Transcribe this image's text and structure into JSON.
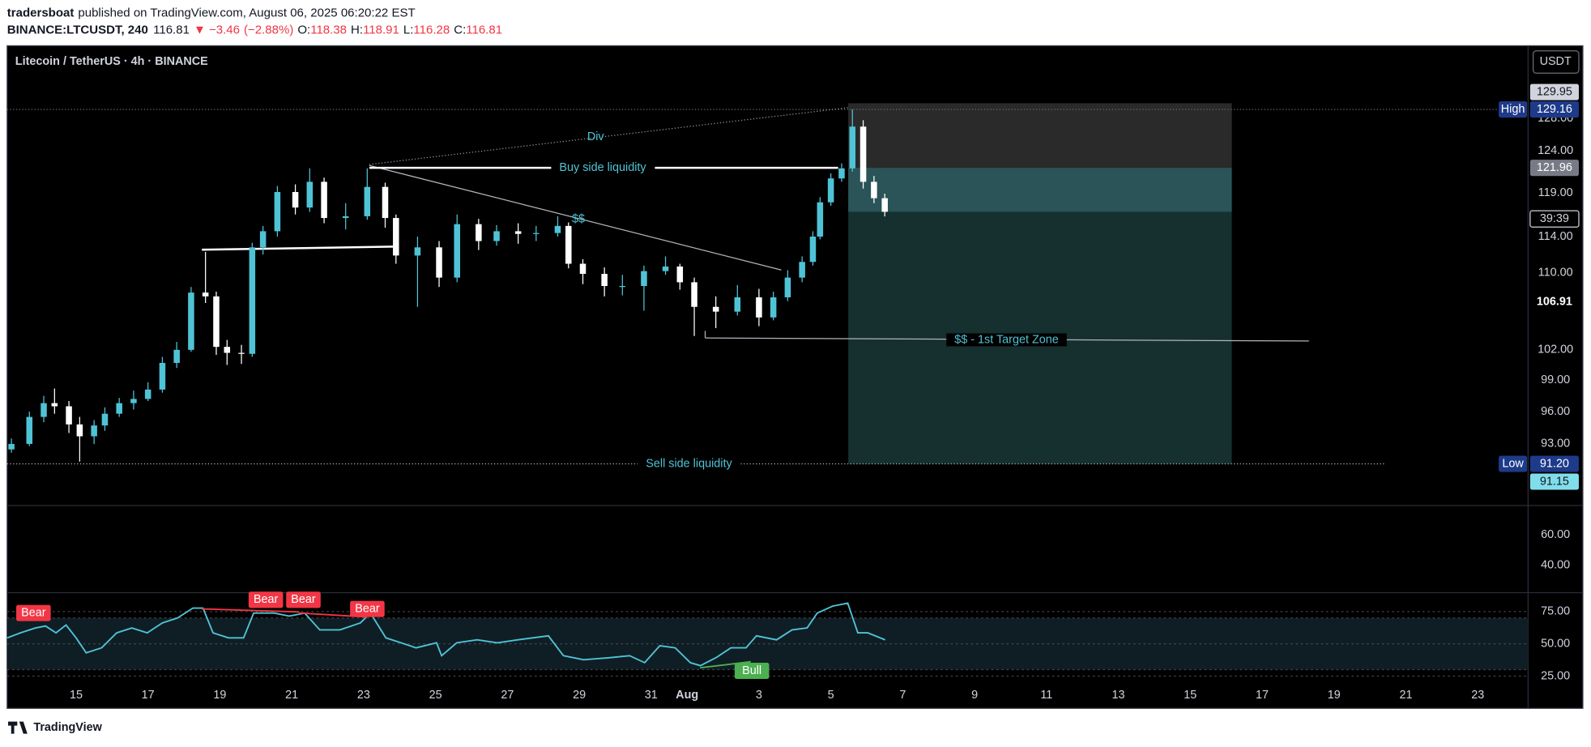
{
  "header": {
    "author": "tradersboat",
    "published": "published on TradingView.com, August 06, 2025 06:20:22 EST",
    "symbol": "BINANCE:LTCUSDT, 240",
    "change": {
      "value": -3.46,
      "label": "▼ −3.46"
    },
    "change_pct": {
      "value": -2.88,
      "label": "(−2.88%)"
    },
    "ohlc_labels": [
      "O:",
      "H:",
      "L:",
      "C:"
    ]
  },
  "brand": "TradingView",
  "chart_data": [
    {
      "type": "candlestick",
      "title": "Litecoin / TetherUS · 4h · BINANCE",
      "currency": "USDT",
      "up_color": "#4fc3d6",
      "down_color": "#ffffff",
      "log_scale": true,
      "x": [
        13.2,
        13.7,
        14.1,
        14.4,
        14.8,
        15.1,
        15.5,
        15.8,
        16.2,
        16.6,
        17.0,
        17.4,
        17.8,
        18.2,
        18.6,
        18.9,
        19.2,
        19.6,
        19.9,
        20.2,
        20.6,
        21.1,
        21.5,
        21.9,
        22.5,
        23.1,
        23.6,
        23.9,
        24.5,
        25.1,
        25.6,
        26.2,
        26.7,
        27.3,
        27.8,
        28.4,
        28.7,
        29.1,
        29.7,
        30.2,
        30.8,
        31.4,
        31.8,
        32.2,
        32.8,
        33.4,
        34.0,
        34.4,
        34.8,
        35.2,
        35.5,
        35.7,
        36.0,
        36.3,
        36.6,
        36.9,
        37.2,
        37.5
      ],
      "open": [
        92.5,
        93.0,
        95.5,
        96.8,
        96.5,
        94.8,
        93.7,
        94.7,
        95.8,
        96.8,
        97.2,
        98.1,
        100.7,
        102.0,
        107.9,
        107.5,
        102.3,
        101.7,
        101.6,
        112.8,
        114.6,
        119.1,
        117.3,
        120.3,
        116.1,
        116.3,
        119.7,
        116.1,
        111.9,
        112.8,
        109.5,
        115.4,
        113.5,
        114.6,
        114.3,
        114.4,
        115.2,
        111.0,
        109.9,
        108.6,
        108.6,
        110.2,
        110.7,
        109.0,
        106.4,
        105.9,
        107.4,
        105.3,
        107.4,
        109.5,
        111.2,
        114.0,
        117.9,
        120.7,
        121.9,
        127.0,
        120.3,
        118.38
      ],
      "high": [
        93.5,
        96.0,
        97.5,
        98.2,
        97.0,
        95.5,
        95.2,
        96.4,
        97.3,
        98.0,
        98.8,
        101.3,
        102.8,
        108.5,
        112.3,
        108.0,
        103.0,
        102.5,
        113.3,
        115.2,
        119.8,
        120.0,
        121.9,
        120.8,
        117.8,
        121.9,
        120.2,
        116.5,
        114.0,
        113.5,
        116.5,
        116.0,
        115.3,
        115.5,
        115.2,
        116.3,
        115.6,
        111.5,
        110.6,
        109.8,
        110.8,
        111.8,
        111.0,
        109.5,
        107.5,
        108.7,
        108.3,
        108.0,
        110.3,
        111.8,
        114.6,
        118.5,
        121.3,
        122.5,
        129.16,
        127.8,
        121.0,
        118.91
      ],
      "low": [
        92.2,
        92.8,
        95.0,
        95.8,
        94.0,
        91.4,
        93.0,
        94.2,
        95.5,
        96.2,
        97.0,
        97.8,
        100.2,
        101.8,
        106.8,
        101.5,
        100.5,
        100.6,
        101.3,
        112.0,
        114.0,
        116.5,
        116.8,
        115.5,
        114.8,
        115.9,
        115.0,
        111.0,
        106.4,
        108.5,
        109.0,
        112.5,
        113.0,
        113.2,
        113.5,
        114.0,
        110.5,
        108.8,
        107.5,
        107.6,
        106.0,
        109.8,
        108.2,
        103.4,
        104.2,
        105.5,
        104.4,
        105.0,
        107.0,
        109.0,
        110.8,
        113.7,
        117.5,
        120.3,
        121.5,
        119.5,
        117.8,
        116.28
      ],
      "close": [
        93.0,
        95.5,
        96.8,
        96.5,
        94.8,
        93.7,
        94.7,
        95.8,
        96.8,
        97.2,
        98.1,
        100.7,
        102.0,
        107.9,
        107.5,
        102.3,
        101.7,
        101.6,
        112.8,
        114.6,
        119.1,
        117.3,
        120.3,
        116.1,
        116.3,
        119.7,
        116.1,
        111.9,
        112.8,
        109.5,
        115.4,
        113.5,
        114.6,
        114.3,
        114.4,
        115.2,
        111.0,
        109.9,
        108.6,
        108.6,
        110.2,
        110.7,
        109.0,
        106.4,
        105.9,
        107.4,
        105.3,
        107.4,
        109.5,
        111.2,
        114.0,
        117.9,
        120.7,
        121.9,
        127.0,
        120.3,
        118.38,
        116.81
      ],
      "xlim": [
        13.08,
        55.4
      ],
      "ylim": [
        87.55,
        137.5
      ],
      "yticks": [
        {
          "value": 93,
          "label": "93.00"
        },
        {
          "value": 96,
          "label": "96.00"
        },
        {
          "value": 99,
          "label": "99.00"
        },
        {
          "value": 102,
          "label": "102.00"
        },
        {
          "value": 110,
          "label": "110.00"
        },
        {
          "value": 114,
          "label": "114.00"
        },
        {
          "value": 119,
          "label": "119.00"
        },
        {
          "value": 124,
          "label": "124.00"
        },
        {
          "value": 128,
          "label": "128.00"
        }
      ],
      "xticks": [
        15,
        17,
        19,
        21,
        23,
        25,
        27,
        29,
        31,
        {
          "value": 32,
          "label": "Aug"
        },
        {
          "value": 34,
          "label": "3"
        },
        {
          "value": 36,
          "label": "5"
        },
        {
          "value": 38,
          "label": "7"
        },
        {
          "value": 40,
          "label": "9"
        },
        {
          "value": 42,
          "label": "11"
        },
        {
          "value": 44,
          "label": "13"
        },
        {
          "value": 46,
          "label": "15"
        },
        {
          "value": 48,
          "label": "17"
        },
        {
          "value": 50,
          "label": "19"
        },
        {
          "value": 52,
          "label": "21"
        },
        {
          "value": 54,
          "label": "23"
        }
      ],
      "price_labels": [
        {
          "value": 129.95,
          "label": "129.95"
        },
        {
          "value": 129.16,
          "label": "129.16",
          "tag": "High"
        },
        {
          "value": 121.96,
          "label": "121.96"
        },
        {
          "value": 106.91,
          "label": "106.91"
        },
        {
          "value": 91.2,
          "label": "91.20",
          "tag": "Low"
        },
        {
          "value": 91.15,
          "label": "91.15"
        }
      ],
      "countdown": "39:39",
      "annotations": [
        "Buy side liquidity",
        "$$ - 1st Target Zone",
        "Sell side liquidity",
        "Div",
        "$$"
      ]
    },
    {
      "type": "line",
      "color": "#4fc3d6",
      "x": [
        13.08,
        13.45,
        13.87,
        14.15,
        14.44,
        14.72,
        15,
        15.28,
        15.71,
        16.13,
        16.55,
        16.98,
        17.4,
        17.82,
        18.25,
        18.53,
        18.81,
        19.24,
        19.66,
        19.94,
        20.51,
        20.93,
        21.36,
        21.78,
        22.34,
        22.91,
        23.19,
        23.62,
        24.04,
        24.46,
        25.03,
        25.17,
        25.59,
        26.16,
        26.72,
        27.29,
        28.14,
        28.56,
        29.12,
        29.83,
        30.4,
        30.82,
        31.24,
        31.67,
        32.09,
        32.37,
        32.8,
        33.22,
        33.64,
        33.93,
        34.49,
        34.92,
        35.34,
        35.62,
        36.05,
        36.47,
        36.75,
        37.03,
        37.51
      ],
      "values": [
        54.6,
        58.5,
        62.3,
        63.8,
        58.5,
        64.6,
        54.6,
        43,
        46.9,
        58.5,
        62.3,
        58.5,
        66.2,
        70,
        77.7,
        77.7,
        58.5,
        54.6,
        54.6,
        73.8,
        73.8,
        71.5,
        73.8,
        60.8,
        60.8,
        66.2,
        73.8,
        54.6,
        50.8,
        46.9,
        50.8,
        40.8,
        50.8,
        53.1,
        50.8,
        53.1,
        56.2,
        40.8,
        37.7,
        39.2,
        40.8,
        35.4,
        48.5,
        46.9,
        35.4,
        33.1,
        39.2,
        46.9,
        46.9,
        56.2,
        53.1,
        60.8,
        62.3,
        73.8,
        79.2,
        81.5,
        58.5,
        58.5,
        53.1
      ],
      "ylim": [
        22,
        89.6
      ],
      "yticks": [
        {
          "value": 25,
          "label": "25.00"
        },
        {
          "value": 50,
          "label": "50.00"
        },
        {
          "value": 75,
          "label": "75.00"
        }
      ],
      "band": [
        30,
        70
      ],
      "signals": [
        "Bear",
        "Bear",
        "Bear",
        "Bear",
        "Bull"
      ]
    },
    {
      "type": "line",
      "values": [],
      "ylim": [
        22,
        79.3
      ],
      "yticks": [
        {
          "value": 40,
          "label": "40.00"
        },
        {
          "value": 60,
          "label": "60.00"
        }
      ]
    }
  ]
}
